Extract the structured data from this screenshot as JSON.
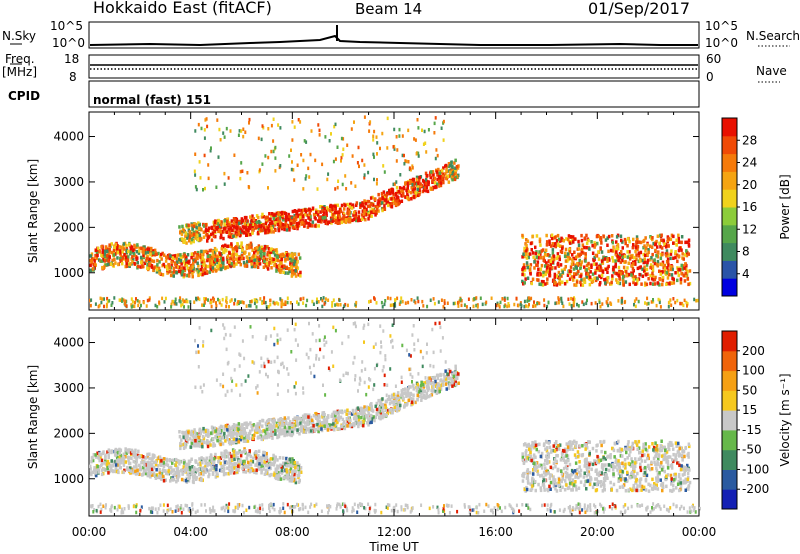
{
  "header": {
    "radar": "Hokkaido East (fitACF)",
    "beam": "Beam 14",
    "date": "01/Sep/2017"
  },
  "top_panels": {
    "nsky_label": "N.Sky",
    "nsky_ticks": [
      "10^5",
      "10^0"
    ],
    "nsearch_label": "N.Search",
    "nsearch_ticks": [
      "10^5",
      "10^0"
    ],
    "freq_label_1": "Freq.",
    "freq_label_2": "[MHz]",
    "freq_ticks": [
      "18",
      "8"
    ],
    "nave_label": "Nave",
    "nave_ticks": [
      "60",
      "0"
    ],
    "cpid_label": "CPID",
    "cpid_value": "normal (fast) 151"
  },
  "chart_data": [
    {
      "type": "heatmap",
      "panel": "power",
      "xlabel": "Time UT",
      "ylabel": "Slant Range [km]",
      "x_ticks": [
        "00:00",
        "04:00",
        "08:00",
        "12:00",
        "16:00",
        "20:00",
        "00:00"
      ],
      "xlim_hours": [
        0,
        24
      ],
      "ylim_km": [
        180,
        4540
      ],
      "y_ticks": [
        1000,
        2000,
        3000,
        4000
      ],
      "colorbar": {
        "label": "Power [dB]",
        "ticks": [
          "28",
          "24",
          "20",
          "16",
          "12",
          "8",
          "4"
        ],
        "colors": [
          "#0000e0",
          "#2a54a8",
          "#3f8a5f",
          "#56a64a",
          "#8ccc3a",
          "#f0d21c",
          "#f5a412",
          "#f57a0a",
          "#f04a06",
          "#e81000"
        ]
      },
      "regions": [
        {
          "t0": 0.0,
          "t1": 8.0,
          "r0": 1000,
          "r1": 1500,
          "level": "moderate"
        },
        {
          "t0": 3.5,
          "t1": 14.5,
          "r0": 1500,
          "r1": 3300,
          "level": "strong"
        },
        {
          "t0": 17.0,
          "t1": 23.5,
          "r0": 600,
          "r1": 1800,
          "level": "strong"
        }
      ]
    },
    {
      "type": "heatmap",
      "panel": "velocity",
      "xlabel": "Time UT",
      "ylabel": "Slant Range [km]",
      "x_ticks": [
        "00:00",
        "04:00",
        "08:00",
        "12:00",
        "16:00",
        "20:00",
        "00:00"
      ],
      "xlim_hours": [
        0,
        24
      ],
      "ylim_km": [
        180,
        4540
      ],
      "y_ticks": [
        1000,
        2000,
        3000,
        4000
      ],
      "colorbar": {
        "label": "Velocity [m s⁻¹]",
        "ticks": [
          "200",
          "100",
          "50",
          "15",
          "-15",
          "-50",
          "-100",
          "-200"
        ],
        "colors": [
          "#1420b4",
          "#2a5aa0",
          "#3f8a5f",
          "#66b84a",
          "#c8c8c8",
          "#f5c81e",
          "#f5a014",
          "#f0640a",
          "#e01e00"
        ]
      }
    }
  ]
}
